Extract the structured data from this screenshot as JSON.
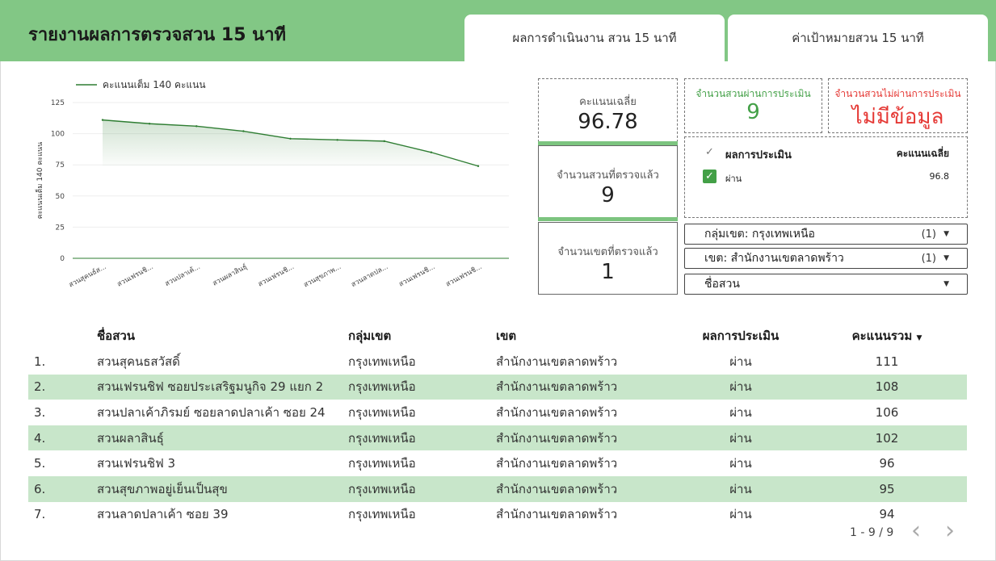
{
  "header": {
    "title": "รายงานผลการตรวจสวน 15 นาที",
    "tabs": [
      {
        "label": "ผลการดำเนินงาน สวน 15 นาที"
      },
      {
        "label": "ค่าเป้าหมายสวน 15 นาที"
      }
    ]
  },
  "chart_data": {
    "type": "area",
    "legend": "คะแนนเต็ม 140 คะแนน",
    "legend_position": "top-left",
    "ylabel": "คะแนนเต็ม 140 คะแนน",
    "xlabel": "",
    "ylim": [
      0,
      125
    ],
    "yticks": [
      0,
      25,
      50,
      75,
      100,
      125
    ],
    "grid": true,
    "categories": [
      "สวนสุคนธ์ส...",
      "สวนเฟรนชิ...",
      "สวนปลาเค้...",
      "สวนผลาสินธุ์",
      "สวนเฟรนชิ...",
      "สวนสุขภาพ...",
      "สวนลาดปล...",
      "สวนเฟรนชิ...",
      "สวนเฟรนชิ..."
    ],
    "series": [
      {
        "name": "คะแนนเต็ม 140 คะแนน",
        "values": [
          111,
          108,
          106,
          102,
          96,
          95,
          94,
          85,
          74
        ]
      }
    ],
    "color": "#2e7d32"
  },
  "kpi": {
    "avg_label": "คะแนนเฉลี่ย",
    "avg_value": "96.78",
    "count_label": "จำนวนสวนที่ตรวจแล้ว",
    "count_value": "9",
    "district_label": "จำนวนเขตที่ตรวจแล้ว",
    "district_value": "1",
    "pass_label": "จำนวนสวนผ่านการประเมิน",
    "pass_value": "9",
    "fail_label": "จำนวนสวนไม่ผ่านการประเมิน",
    "fail_value": "ไม่มีข้อมูล",
    "pass_color": "#43a047",
    "fail_color": "#e53935"
  },
  "eval_filter": {
    "header_label": "ผลการประเมิน",
    "header_score": "คะแนนเฉลี่ย",
    "item_label": "ผ่าน",
    "item_score": "96.8"
  },
  "filters": {
    "group_label": "กลุ่มเขต",
    "group_value": ": กรุงเทพเหนือ",
    "group_count": "(1)",
    "district_label": "เขต",
    "district_value": ": สำนักงานเขตลาดพร้าว",
    "district_count": "(1)",
    "park_label": "ชื่อสวน"
  },
  "table": {
    "columns": [
      "ชื่อสวน",
      "กลุ่มเขต",
      "เขต",
      "ผลการประเมิน",
      "คะแนนรวม"
    ],
    "sort_indicator": "▼",
    "rows": [
      {
        "idx": "1.",
        "name": "สวนสุคนธสวัสดิ์",
        "group": "กรุงเทพเหนือ",
        "district": "สำนักงานเขตลาดพร้าว",
        "result": "ผ่าน",
        "score": "111"
      },
      {
        "idx": "2.",
        "name": "สวนเฟรนชิฟ ซอยประเสริฐมนูกิจ 29 แยก 2",
        "group": "กรุงเทพเหนือ",
        "district": "สำนักงานเขตลาดพร้าว",
        "result": "ผ่าน",
        "score": "108"
      },
      {
        "idx": "3.",
        "name": "สวนปลาเค้าภิรมย์ ซอยลาดปลาเค้า ซอย 24",
        "group": "กรุงเทพเหนือ",
        "district": "สำนักงานเขตลาดพร้าว",
        "result": "ผ่าน",
        "score": "106"
      },
      {
        "idx": "4.",
        "name": "สวนผลาสินธุ์",
        "group": "กรุงเทพเหนือ",
        "district": "สำนักงานเขตลาดพร้าว",
        "result": "ผ่าน",
        "score": "102"
      },
      {
        "idx": "5.",
        "name": "สวนเฟรนชิฟ 3",
        "group": "กรุงเทพเหนือ",
        "district": "สำนักงานเขตลาดพร้าว",
        "result": "ผ่าน",
        "score": "96"
      },
      {
        "idx": "6.",
        "name": "สวนสุขภาพอยู่เย็นเป็นสุข",
        "group": "กรุงเทพเหนือ",
        "district": "สำนักงานเขตลาดพร้าว",
        "result": "ผ่าน",
        "score": "95"
      },
      {
        "idx": "7.",
        "name": "สวนลาดปลาเค้า ซอย 39",
        "group": "กรุงเทพเหนือ",
        "district": "สำนักงานเขตลาดพร้าว",
        "result": "ผ่าน",
        "score": "94"
      }
    ]
  },
  "pager": {
    "text": "1 - 9 / 9",
    "prev_icon": "‹",
    "next_icon": "›"
  }
}
